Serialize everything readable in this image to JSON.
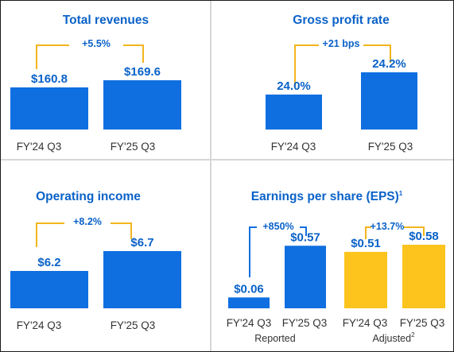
{
  "colors": {
    "blue": "#0a62c8",
    "bar_blue": "#0f6fe0",
    "yellow": "#fcc41d",
    "bracket_yellow": "#f2b51d",
    "divider": "#d7d7d7",
    "axis_text": "#333333"
  },
  "chart_data": [
    {
      "type": "bar",
      "title": "Total revenues",
      "categories": [
        "FY'24 Q3",
        "FY'25 Q3"
      ],
      "values": [
        160.8,
        169.6
      ],
      "value_labels": [
        "$160.8",
        "$169.6"
      ],
      "change_label": "+5.5%",
      "bar_color": "#0f6fe0"
    },
    {
      "type": "bar",
      "title": "Gross profit rate",
      "categories": [
        "FY'24 Q3",
        "FY'25 Q3"
      ],
      "values": [
        24.0,
        24.2
      ],
      "value_labels": [
        "24.0%",
        "24.2%"
      ],
      "change_label": "+21 bps",
      "bar_color": "#0f6fe0"
    },
    {
      "type": "bar",
      "title": "Operating income",
      "categories": [
        "FY'24 Q3",
        "FY'25 Q3"
      ],
      "values": [
        6.2,
        6.7
      ],
      "value_labels": [
        "$6.2",
        "$6.7"
      ],
      "change_label": "+8.2%",
      "bar_color": "#0f6fe0"
    },
    {
      "type": "bar",
      "title": "Earnings per share (EPS)",
      "title_note": "1",
      "groups": [
        {
          "name": "Reported",
          "categories": [
            "FY'24 Q3",
            "FY'25 Q3"
          ],
          "values": [
            0.06,
            0.57
          ],
          "value_labels": [
            "$0.06",
            "$0.57"
          ],
          "change_label": "+850%",
          "bar_color": "#0f6fe0"
        },
        {
          "name": "Adjusted",
          "name_note": "2",
          "categories": [
            "FY'24 Q3",
            "FY'25 Q3"
          ],
          "values": [
            0.51,
            0.58
          ],
          "value_labels": [
            "$0.51",
            "$0.58"
          ],
          "change_label": "+13.7%",
          "bar_color": "#fcc41d"
        }
      ]
    }
  ]
}
